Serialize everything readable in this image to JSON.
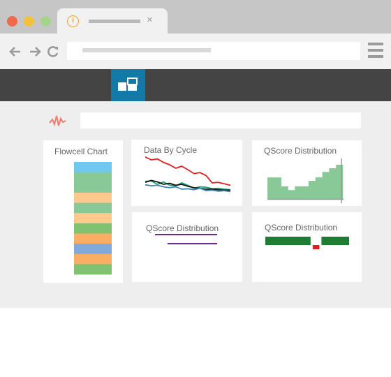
{
  "browser": {
    "tab_close_glyph": "×",
    "tab_info_glyph": "i",
    "traffic_lights": [
      "#ee6a4a",
      "#f3c23a",
      "#a6d58a"
    ],
    "icons": [
      "back-arrow-icon",
      "forward-arrow-icon",
      "reload-icon",
      "hamburger-menu-icon"
    ]
  },
  "app": {
    "header_color": "#444444",
    "accent": "#1379a6",
    "logo_icon": "dashboard-layout-icon",
    "activity_icon": "pulse-icon"
  },
  "search": {
    "value": "",
    "placeholder": ""
  },
  "cards": {
    "flowcell": {
      "title": "Flowcell Chart"
    },
    "data_by_cycle": {
      "title": "Data By Cycle"
    },
    "qscore_top": {
      "title": "QScore Distribution"
    },
    "qscore_bottom_left": {
      "title": "QScore Distribution"
    },
    "qscore_bottom_right": {
      "title": "QScore Distribution"
    }
  },
  "chart_data": [
    {
      "type": "heatmap",
      "title": "Flowcell Chart",
      "orientation": "vertical-stack",
      "rows": [
        "#70c8f0",
        "#89c997",
        "#89c997",
        "#fdc98d",
        "#89c997",
        "#fdc98d",
        "#80c271",
        "#faae64",
        "#82a9dc",
        "#faae64",
        "#80c271"
      ]
    },
    {
      "type": "line",
      "title": "Data By Cycle",
      "x": [
        1,
        2,
        3,
        4,
        5,
        6,
        7,
        8,
        9,
        10,
        11,
        12,
        13,
        14,
        15
      ],
      "series": [
        {
          "color": "#e21e1e",
          "values": [
            96,
            90,
            92,
            85,
            80,
            73,
            77,
            70,
            62,
            64,
            58,
            43,
            44,
            41,
            38
          ]
        },
        {
          "color": "#1fa37a",
          "values": [
            46,
            47,
            40,
            45,
            38,
            37,
            43,
            38,
            32,
            35,
            34,
            31,
            32,
            30,
            29
          ]
        },
        {
          "color": "#111111",
          "values": [
            44,
            48,
            45,
            40,
            42,
            38,
            40,
            36,
            33,
            32,
            30,
            30,
            29,
            28,
            28
          ]
        },
        {
          "color": "#3c85b6",
          "values": [
            39,
            37,
            38,
            35,
            33,
            35,
            30,
            31,
            29,
            32,
            27,
            28,
            26,
            27,
            25
          ]
        }
      ],
      "ylim": [
        0,
        100
      ]
    },
    {
      "type": "bar",
      "title": "QScore Distribution",
      "color": "#89c997",
      "values": [
        0.63,
        0.63,
        0.37,
        0.26,
        0.37,
        0.37,
        0.53,
        0.63,
        0.79,
        0.9,
        1.0
      ],
      "ylim": [
        0,
        1
      ]
    },
    {
      "type": "line",
      "title": "QScore Distribution",
      "color": "#6a2a8a",
      "series": [
        {
          "color": "#6a2a8a",
          "x": [
            0,
            1
          ],
          "values": [
            2,
            2
          ]
        },
        {
          "color": "#6a2a8a",
          "x": [
            0.2,
            1
          ],
          "values": [
            1,
            1
          ]
        }
      ]
    },
    {
      "type": "bar",
      "title": "QScore Distribution",
      "orientation": "horizontal-range",
      "segments": [
        {
          "color": "#1e7d32",
          "start": 0,
          "end": 0.54
        },
        {
          "color": "#e21e1e",
          "start": 0.54,
          "end": 0.67
        },
        {
          "color": "#1e7d32",
          "start": 0.67,
          "end": 1
        }
      ]
    }
  ]
}
